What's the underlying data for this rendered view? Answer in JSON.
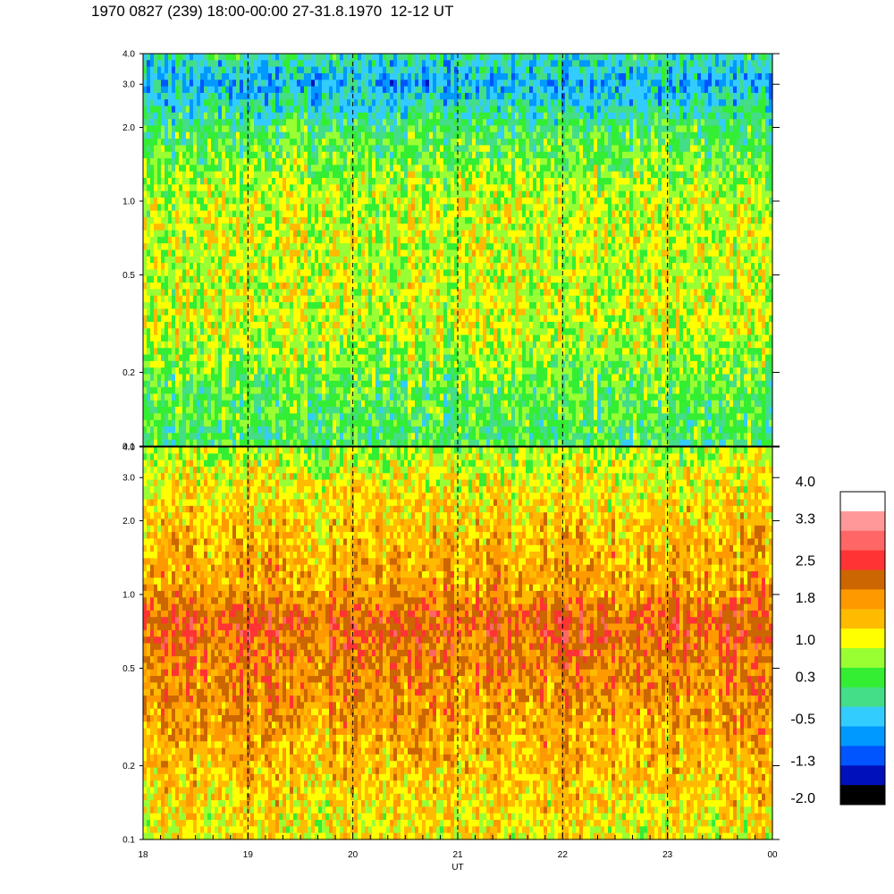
{
  "title": "1970 0827 (239) 18:00-00:00 27-31.8.1970  12-12 UT",
  "chart_data": [
    {
      "type": "heatmap",
      "panel": "upper",
      "y_ticks": [
        "0.1",
        "0.2",
        "0.5",
        "1.0",
        "2.0",
        "3.0",
        "4.0"
      ],
      "y_tick_values": [
        0.1,
        0.2,
        0.5,
        1.0,
        2.0,
        3.0,
        4.0
      ],
      "ylim": [
        0.1,
        4.0
      ],
      "y_scale": "log",
      "xlim": [
        18,
        24
      ],
      "dashed_gridlines_x": [
        19,
        20,
        21,
        22,
        23
      ],
      "dominant_band_profile": [
        {
          "y": 0.1,
          "level": 0.3
        },
        {
          "y": 0.2,
          "level": 0.6
        },
        {
          "y": 0.3,
          "level": 1.0
        },
        {
          "y": 0.5,
          "level": 1.0
        },
        {
          "y": 1.0,
          "level": 1.0
        },
        {
          "y": 2.0,
          "level": 0.3
        },
        {
          "y": 3.0,
          "level": -0.5
        },
        {
          "y": 4.0,
          "level": 0.0
        }
      ]
    },
    {
      "type": "heatmap",
      "panel": "lower",
      "y_ticks": [
        "0.1",
        "0.2",
        "0.5",
        "1.0",
        "2.0",
        "3.0",
        "4.0"
      ],
      "y_tick_values": [
        0.1,
        0.2,
        0.5,
        1.0,
        2.0,
        3.0,
        4.0
      ],
      "ylim": [
        0.1,
        4.0
      ],
      "y_scale": "log",
      "x_ticks": [
        "18",
        "19",
        "20",
        "21",
        "22",
        "23",
        "00"
      ],
      "x_tick_values": [
        18,
        19,
        20,
        21,
        22,
        23,
        24
      ],
      "xlim": [
        18,
        24
      ],
      "xlabel": "UT",
      "dashed_gridlines_x": [
        19,
        20,
        21,
        22,
        23
      ],
      "dominant_band_profile": [
        {
          "y": 0.1,
          "level": 1.2
        },
        {
          "y": 0.2,
          "level": 1.6
        },
        {
          "y": 0.5,
          "level": 2.1
        },
        {
          "y": 0.8,
          "level": 2.4
        },
        {
          "y": 1.0,
          "level": 1.9
        },
        {
          "y": 2.0,
          "level": 1.5
        },
        {
          "y": 3.0,
          "level": 1.2
        },
        {
          "y": 4.0,
          "level": 0.8
        }
      ]
    }
  ],
  "colorbar": {
    "labels": [
      "4.0",
      "3.3",
      "2.5",
      "1.8",
      "1.0",
      "0.3",
      "-0.5",
      "-1.3",
      "-2.0"
    ],
    "label_values": [
      4.0,
      3.3,
      2.5,
      1.8,
      1.0,
      0.3,
      -0.5,
      -1.3,
      -2.0
    ],
    "range": [
      -2.0,
      4.0
    ],
    "colors_top_to_bottom": [
      "#ffffff",
      "#ff9999",
      "#ff6666",
      "#ff3333",
      "#cc6600",
      "#ff9900",
      "#ffbb00",
      "#ffff00",
      "#99ff33",
      "#33ee33",
      "#44dd88",
      "#33ccff",
      "#0099ff",
      "#0055ff",
      "#0011bb",
      "#000000"
    ]
  }
}
